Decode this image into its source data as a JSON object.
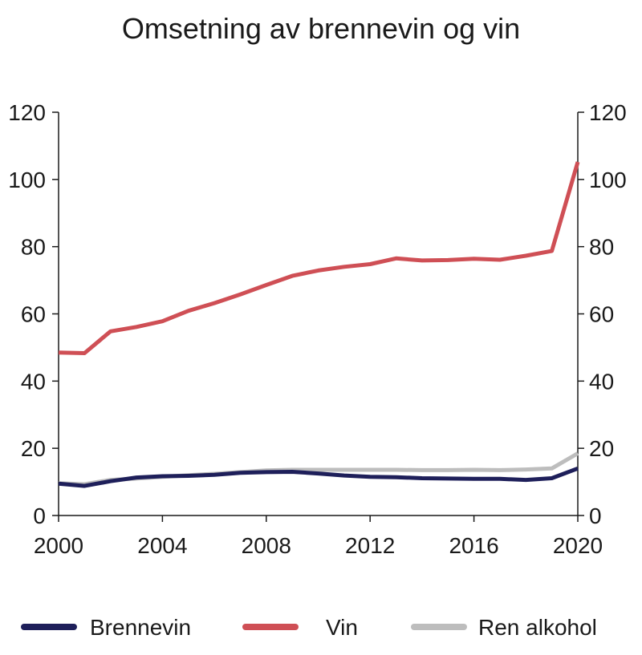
{
  "chart_data": {
    "type": "line",
    "title": "Omsetning av brennevin og vin",
    "xlabel": "",
    "ylabel": "",
    "xlim": [
      2000,
      2020
    ],
    "ylim": [
      0,
      120
    ],
    "x_ticks": [
      "2000",
      "2004",
      "2008",
      "2012",
      "2016",
      "2020"
    ],
    "y_ticks_left": [
      "0",
      "20",
      "40",
      "60",
      "80",
      "100",
      "120"
    ],
    "y_ticks_right": [
      "0",
      "20",
      "40",
      "60",
      "80",
      "100",
      "120"
    ],
    "grid": false,
    "legend_position": "bottom",
    "x": [
      2000,
      2001,
      2002,
      2003,
      2004,
      2005,
      2006,
      2007,
      2008,
      2009,
      2010,
      2011,
      2012,
      2013,
      2014,
      2015,
      2016,
      2017,
      2018,
      2019,
      2020
    ],
    "series": [
      {
        "name": "Brennevin",
        "color": "#1e1f5a",
        "values": [
          9.5,
          8.8,
          10.2,
          11.3,
          11.7,
          11.8,
          12.1,
          12.7,
          12.9,
          13.0,
          12.5,
          11.9,
          11.5,
          11.4,
          11.1,
          11.0,
          10.9,
          10.9,
          10.6,
          11.1,
          14.0
        ]
      },
      {
        "name": "Vin",
        "color": "#cf4f55",
        "values": [
          48.5,
          48.3,
          54.8,
          56.1,
          57.8,
          60.9,
          63.2,
          65.8,
          68.6,
          71.3,
          72.9,
          74.0,
          74.8,
          76.5,
          75.9,
          76.0,
          76.4,
          76.1,
          77.3,
          78.7,
          105.2
        ]
      },
      {
        "name": "Ren alkohol",
        "color": "#bdbdbd",
        "values": [
          9.6,
          9.3,
          10.6,
          11.0,
          11.5,
          12.0,
          12.4,
          12.9,
          13.4,
          13.6,
          13.6,
          13.6,
          13.6,
          13.6,
          13.5,
          13.5,
          13.6,
          13.5,
          13.7,
          14.0,
          18.5
        ]
      }
    ]
  }
}
